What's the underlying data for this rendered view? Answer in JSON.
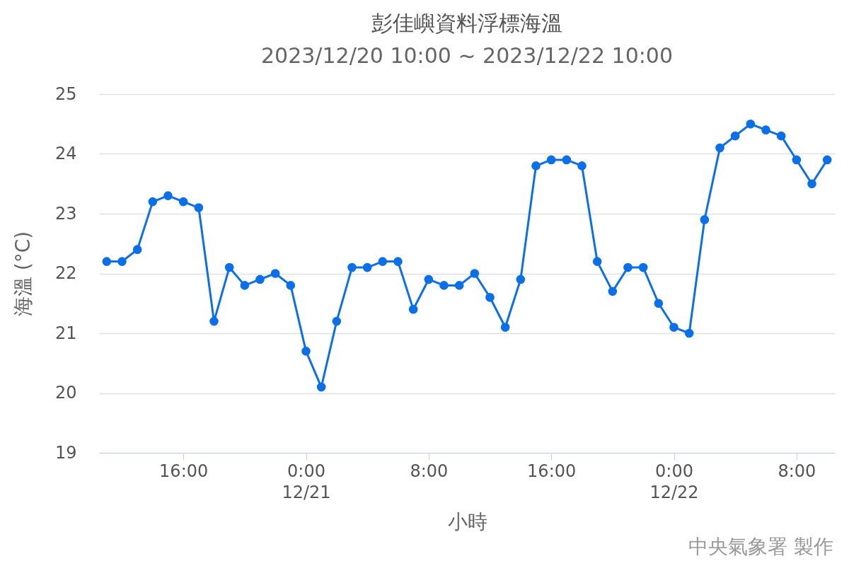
{
  "chart_data": {
    "type": "line",
    "title": "彭佳嶼資料浮標海溫",
    "subtitle": "2023/12/20 10:00 ~ 2023/12/22 10:00",
    "xlabel": "小時",
    "ylabel": "海溫 (°C)",
    "x": [
      "2023-12-20T11:00",
      "2023-12-20T12:00",
      "2023-12-20T13:00",
      "2023-12-20T14:00",
      "2023-12-20T15:00",
      "2023-12-20T16:00",
      "2023-12-20T17:00",
      "2023-12-20T18:00",
      "2023-12-20T19:00",
      "2023-12-20T20:00",
      "2023-12-20T21:00",
      "2023-12-20T22:00",
      "2023-12-20T23:00",
      "2023-12-21T00:00",
      "2023-12-21T01:00",
      "2023-12-21T02:00",
      "2023-12-21T03:00",
      "2023-12-21T04:00",
      "2023-12-21T05:00",
      "2023-12-21T06:00",
      "2023-12-21T07:00",
      "2023-12-21T08:00",
      "2023-12-21T09:00",
      "2023-12-21T10:00",
      "2023-12-21T11:00",
      "2023-12-21T12:00",
      "2023-12-21T13:00",
      "2023-12-21T14:00",
      "2023-12-21T15:00",
      "2023-12-21T16:00",
      "2023-12-21T17:00",
      "2023-12-21T18:00",
      "2023-12-21T19:00",
      "2023-12-21T20:00",
      "2023-12-21T21:00",
      "2023-12-21T22:00",
      "2023-12-21T23:00",
      "2023-12-22T00:00",
      "2023-12-22T01:00",
      "2023-12-22T02:00",
      "2023-12-22T03:00",
      "2023-12-22T04:00",
      "2023-12-22T05:00",
      "2023-12-22T06:00",
      "2023-12-22T07:00",
      "2023-12-22T08:00",
      "2023-12-22T09:00",
      "2023-12-22T10:00"
    ],
    "series": [
      {
        "color": "#0a6fe8",
        "values": [
          22.2,
          22.2,
          22.4,
          23.2,
          23.3,
          23.2,
          23.1,
          21.2,
          22.1,
          21.8,
          21.9,
          22.0,
          21.8,
          20.7,
          20.1,
          21.2,
          22.1,
          22.1,
          22.2,
          22.2,
          21.4,
          21.9,
          21.8,
          21.8,
          22.0,
          21.6,
          21.1,
          21.9,
          23.8,
          23.9,
          23.9,
          23.8,
          22.2,
          21.7,
          22.1,
          22.1,
          21.5,
          21.1,
          21.0,
          22.9,
          24.1,
          24.3,
          24.5,
          24.4,
          24.3,
          23.9,
          23.5,
          23.9
        ]
      }
    ],
    "xlim": [
      "2023-12-20T10:30",
      "2023-12-22T10:30"
    ],
    "xticks": [
      {
        "value": "2023-12-20T16:00",
        "label": "16:00"
      },
      {
        "value": "2023-12-21T00:00",
        "label": "0:00\n12/21"
      },
      {
        "value": "2023-12-21T08:00",
        "label": "8:00"
      },
      {
        "value": "2023-12-21T16:00",
        "label": "16:00"
      },
      {
        "value": "2023-12-22T00:00",
        "label": "0:00\n12/22"
      },
      {
        "value": "2023-12-22T08:00",
        "label": "8:00"
      }
    ],
    "ylim": [
      19,
      25
    ],
    "yticks": [
      19,
      20,
      21,
      22,
      23,
      24,
      25
    ],
    "grid": "y",
    "marker": "circle",
    "line_style": "solid",
    "annotations": [
      "中央氣象署 製作"
    ]
  }
}
